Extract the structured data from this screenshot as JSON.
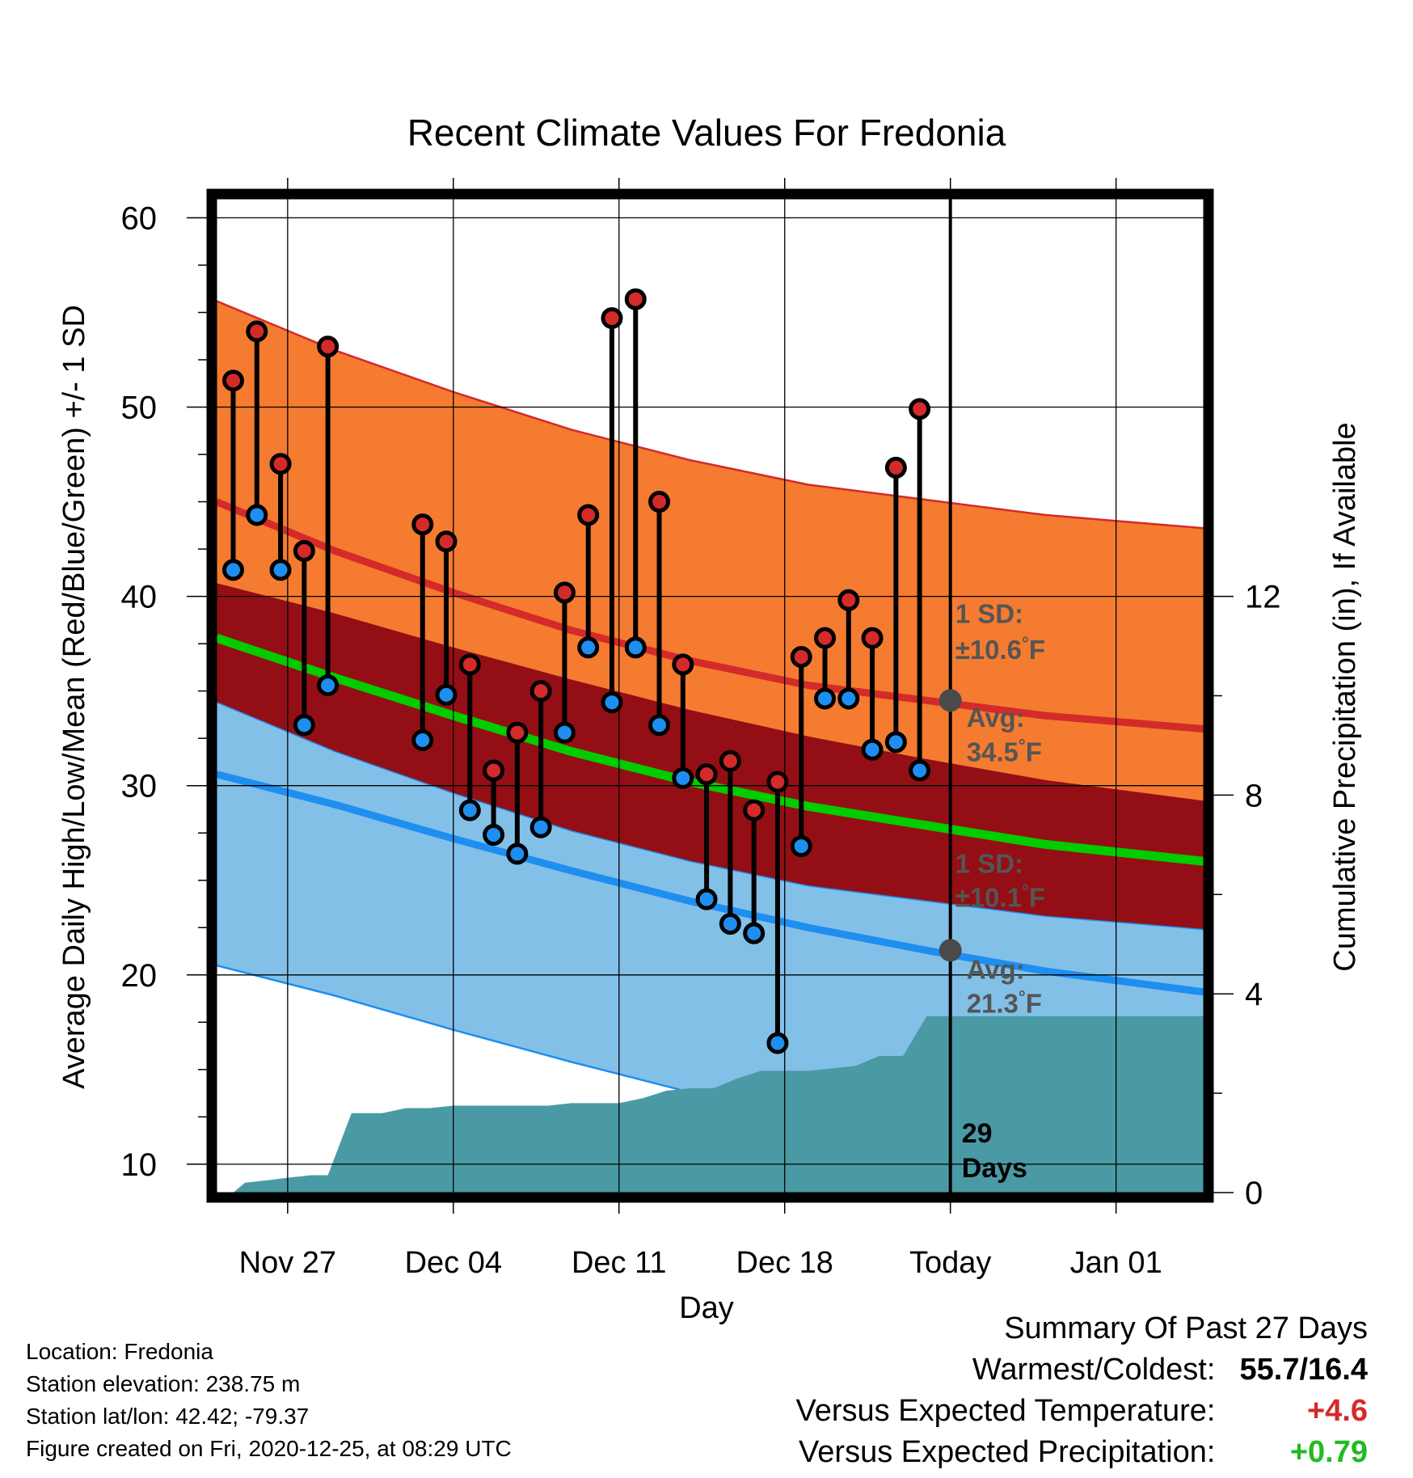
{
  "chart_data": {
    "type": "line",
    "title": "Recent Climate Values For Fredonia",
    "xlabel": "Day",
    "ylabel": "Average Daily High/Low/Mean (Red/Blue/Green) +/- 1 SD",
    "y2label": "Cumulative Precipitation (in), If Available",
    "ylim": [
      8.5,
      61
    ],
    "y2lim": [
      0,
      20
    ],
    "x_tick_labels": [
      "Nov 27",
      "Dec 04",
      "Dec 11",
      "Dec 18",
      "Today",
      "Jan 01"
    ],
    "x_tick_days": [
      3,
      10,
      17,
      24,
      31,
      38
    ],
    "xlim": [
      0,
      41.7
    ],
    "y_ticks": [
      10,
      20,
      30,
      40,
      50,
      60
    ],
    "y2_ticks": [
      0,
      4,
      8,
      12
    ],
    "grid": true,
    "today_day": 31,
    "today_text": [
      "29",
      "Days"
    ],
    "normals": {
      "days": [
        0,
        5,
        10,
        15,
        20,
        25,
        30,
        35,
        41.7
      ],
      "high_mean": [
        45.0,
        42.4,
        40.2,
        38.2,
        36.6,
        35.3,
        34.5,
        33.7,
        33.0
      ],
      "high_sd": 10.6,
      "low_mean": [
        30.6,
        29.0,
        27.2,
        25.5,
        23.9,
        22.5,
        21.3,
        20.2,
        19.1
      ],
      "low_sd": 10.1,
      "avg_mean": [
        37.8,
        35.7,
        33.7,
        31.8,
        30.2,
        28.9,
        27.9,
        26.9,
        26.0
      ]
    },
    "annotations": [
      {
        "label": "1 SD:",
        "value": "±10.6",
        "unit": "°F"
      },
      {
        "label": "Avg:",
        "value": "34.5",
        "unit": "°F"
      },
      {
        "label": "1 SD:",
        "value": "±10.1",
        "unit": "°F"
      },
      {
        "label": "Avg:",
        "value": "21.3",
        "unit": "°F"
      }
    ],
    "series": [
      {
        "name": "High",
        "days": [
          0.7,
          1.7,
          2.7,
          3.7,
          4.7,
          8.7,
          9.7,
          10.7,
          11.7,
          12.7,
          13.7,
          14.7,
          15.7,
          16.7,
          17.7,
          18.7,
          19.7,
          20.7,
          21.7,
          22.7,
          23.7,
          24.7,
          25.7,
          26.7,
          27.7,
          28.7,
          29.7
        ],
        "values": [
          51.4,
          54.0,
          47.0,
          42.4,
          53.2,
          43.8,
          42.9,
          36.4,
          30.8,
          32.8,
          35.0,
          40.2,
          44.3,
          54.7,
          55.7,
          45.0,
          36.4,
          30.6,
          31.3,
          28.7,
          30.2,
          36.8,
          37.8,
          39.8,
          37.8,
          46.8,
          49.9
        ]
      },
      {
        "name": "Low",
        "days": [
          0.7,
          1.7,
          2.7,
          3.7,
          4.7,
          8.7,
          9.7,
          10.7,
          11.7,
          12.7,
          13.7,
          14.7,
          15.7,
          16.7,
          17.7,
          18.7,
          19.7,
          20.7,
          21.7,
          22.7,
          23.7,
          24.7,
          25.7,
          26.7,
          27.7,
          28.7,
          29.7
        ],
        "values": [
          41.4,
          44.3,
          41.4,
          33.2,
          35.3,
          32.4,
          34.8,
          28.7,
          27.4,
          26.4,
          27.8,
          32.8,
          37.3,
          34.4,
          37.3,
          33.2,
          30.4,
          24.0,
          22.7,
          22.2,
          16.4,
          26.8,
          34.6,
          34.6,
          31.9,
          32.3,
          30.8
        ]
      },
      {
        "name": "Cumulative Precipitation",
        "days": [
          0,
          0.7,
          1.2,
          2.2,
          3.0,
          4.0,
          4.7,
          5.7,
          6.0,
          7.0,
          8.0,
          9.0,
          10.0,
          11.0,
          12.0,
          13.0,
          14.0,
          15.0,
          16.0,
          17.0,
          18.0,
          19.0,
          20.0,
          21.0,
          22.0,
          23.0,
          24.0,
          25.0,
          26.0,
          27.0,
          28.0,
          29.0,
          30.0,
          31.0,
          35.0,
          41.7
        ],
        "values": [
          0,
          0,
          0.2,
          0.25,
          0.3,
          0.35,
          0.35,
          1.6,
          1.6,
          1.6,
          1.7,
          1.7,
          1.75,
          1.75,
          1.75,
          1.75,
          1.75,
          1.8,
          1.8,
          1.8,
          1.9,
          2.05,
          2.1,
          2.1,
          2.3,
          2.45,
          2.45,
          2.45,
          2.5,
          2.55,
          2.75,
          2.75,
          3.55,
          3.55,
          3.55,
          3.55
        ]
      }
    ]
  },
  "location": "Location: Fredonia",
  "elevation": "Station elevation: 238.75 m",
  "latlon": "Station lat/lon: 42.42; -79.37",
  "created": "Figure created on Fri, 2020-12-25, at 08:29 UTC",
  "summary": {
    "title": "Summary Of Past 27 Days",
    "warm_cold_label": "Warmest/Coldest:",
    "warm_cold_value": "55.7/16.4",
    "temp_label": "Versus Expected Temperature:",
    "temp_value": "+4.6",
    "precip_label": "Versus Expected Precipitation:",
    "precip_value": "+0.79"
  },
  "colors": {
    "high_band": "#f47b30",
    "mid_band": "#930f15",
    "low_band": "#82c0e8",
    "high_line": "#d42a2a",
    "avg_line": "#00cc00",
    "low_line": "#1e8ef0",
    "precip": "#4a9aa5",
    "annotation": "#555555"
  }
}
